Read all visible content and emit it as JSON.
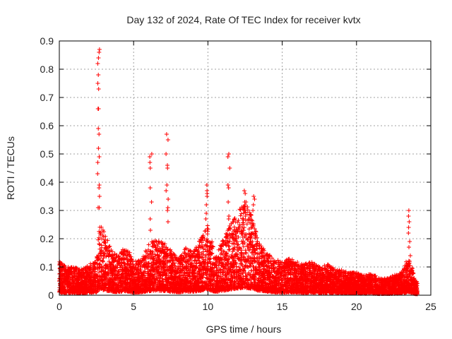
{
  "chart_data": {
    "type": "scatter",
    "title": "Day 132 of 2024, Rate Of TEC Index for receiver kvtx",
    "xlabel": "GPS time / hours",
    "ylabel": "ROTI / TECUs",
    "xlim": [
      0,
      25
    ],
    "ylim": [
      0,
      0.9
    ],
    "x_ticks": [
      "0",
      "5",
      "10",
      "15",
      "20",
      "25"
    ],
    "y_ticks": [
      "0",
      "0.1",
      "0.2",
      "0.3",
      "0.4",
      "0.5",
      "0.6",
      "0.7",
      "0.8",
      "0.9"
    ],
    "grid": true,
    "marker": "plus",
    "color": "#ff0000",
    "envelope": {
      "x": [
        0,
        0.5,
        1,
        1.5,
        2,
        2.5,
        2.7,
        3,
        3.5,
        4,
        4.5,
        5,
        5.5,
        6,
        6.5,
        7,
        7.5,
        8,
        8.5,
        9,
        9.5,
        10,
        10.5,
        11,
        11.5,
        12,
        12.5,
        13,
        13.5,
        14,
        14.5,
        15,
        15.5,
        16,
        16.5,
        17,
        17.5,
        18,
        18.5,
        19,
        19.5,
        20,
        20.5,
        21,
        21.5,
        22,
        22.5,
        23,
        23.5,
        24
      ],
      "y": [
        0.12,
        0.1,
        0.1,
        0.09,
        0.11,
        0.13,
        0.25,
        0.23,
        0.16,
        0.14,
        0.18,
        0.12,
        0.13,
        0.18,
        0.2,
        0.19,
        0.16,
        0.13,
        0.17,
        0.15,
        0.2,
        0.25,
        0.14,
        0.2,
        0.25,
        0.3,
        0.33,
        0.28,
        0.18,
        0.15,
        0.13,
        0.12,
        0.13,
        0.12,
        0.11,
        0.12,
        0.1,
        0.11,
        0.1,
        0.09,
        0.08,
        0.08,
        0.07,
        0.08,
        0.06,
        0.06,
        0.07,
        0.08,
        0.14,
        0.05
      ]
    },
    "peaks": [
      {
        "x": 2.65,
        "y": [
          0.87,
          0.86,
          0.84,
          0.82,
          0.78,
          0.75,
          0.73,
          0.66,
          0.66,
          0.59,
          0.57,
          0.52,
          0.49,
          0.47,
          0.43,
          0.39,
          0.38,
          0.35,
          0.31,
          0.31
        ]
      },
      {
        "x": 6.15,
        "y": [
          0.5,
          0.49,
          0.47,
          0.45,
          0.38,
          0.33,
          0.27,
          0.23
        ]
      },
      {
        "x": 7.25,
        "y": [
          0.57,
          0.55,
          0.5,
          0.46,
          0.45,
          0.39,
          0.37,
          0.34,
          0.31,
          0.3,
          0.26
        ]
      },
      {
        "x": 9.9,
        "y": [
          0.39,
          0.37,
          0.36,
          0.35,
          0.32,
          0.29,
          0.27
        ]
      },
      {
        "x": 11.4,
        "y": [
          0.5,
          0.49,
          0.45,
          0.39,
          0.38,
          0.33,
          0.28,
          0.27
        ]
      },
      {
        "x": 12.5,
        "y": [
          0.37,
          0.36,
          0.33,
          0.33,
          0.32,
          0.3,
          0.28
        ]
      },
      {
        "x": 13.1,
        "y": [
          0.35,
          0.34,
          0.32,
          0.3
        ]
      },
      {
        "x": 23.55,
        "y": [
          0.3,
          0.28,
          0.26,
          0.24,
          0.22,
          0.19,
          0.17,
          0.14,
          0.12
        ]
      }
    ]
  }
}
